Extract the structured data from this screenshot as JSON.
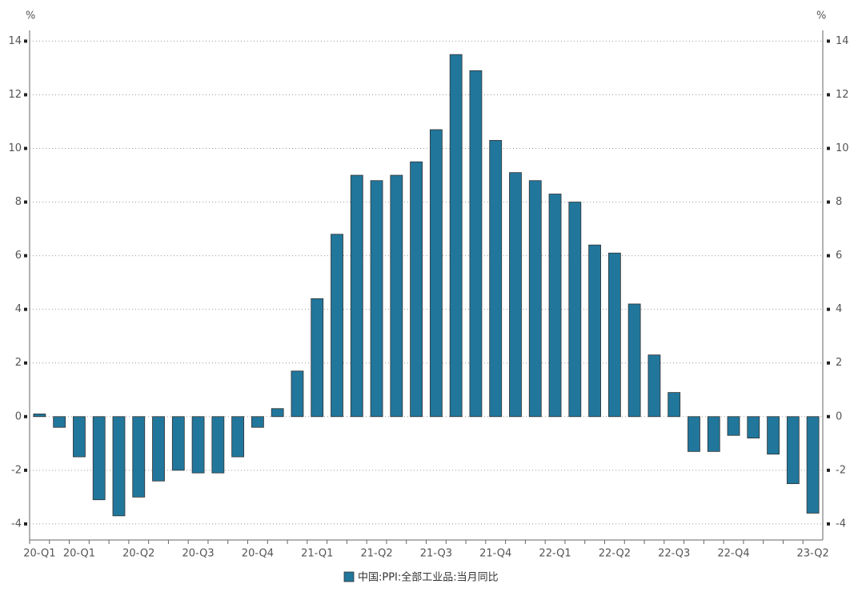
{
  "chart_data": {
    "type": "bar",
    "y_unit": "%",
    "y2_unit": "%",
    "categories": [
      "20-Q1",
      null,
      "20-Q1",
      null,
      null,
      "20-Q2",
      null,
      null,
      "20-Q3",
      null,
      null,
      "20-Q4",
      null,
      null,
      "21-Q1",
      null,
      null,
      "21-Q2",
      null,
      null,
      "21-Q3",
      null,
      null,
      "21-Q4",
      null,
      null,
      "22-Q1",
      null,
      null,
      "22-Q2",
      null,
      null,
      "22-Q3",
      null,
      null,
      "22-Q4",
      null,
      null,
      null,
      "23-Q2"
    ],
    "series": [
      {
        "name": "中国:PPI:全部工业品:当月同比",
        "color": "#21769b",
        "values": [
          0.1,
          -0.4,
          -1.5,
          -3.1,
          -3.7,
          -3.0,
          -2.4,
          -2.0,
          -2.1,
          -2.1,
          -1.5,
          -0.4,
          0.3,
          1.7,
          4.4,
          6.8,
          9.0,
          8.8,
          9.0,
          9.5,
          10.7,
          13.5,
          12.9,
          10.3,
          9.1,
          8.8,
          8.3,
          8.0,
          6.4,
          6.1,
          4.2,
          2.3,
          0.9,
          -1.3,
          -1.3,
          -0.7,
          -0.8,
          -1.4,
          -2.5,
          -3.6
        ]
      }
    ],
    "ylim": [
      -4.6,
      14.4
    ],
    "yticks": [
      -4,
      -2,
      0,
      2,
      4,
      6,
      8,
      10,
      12,
      14
    ],
    "y2lim": [
      -4.6,
      14.4
    ],
    "y2ticks": [
      -4,
      -2,
      0,
      2,
      4,
      6,
      8,
      10,
      12,
      14
    ],
    "grid": true
  }
}
